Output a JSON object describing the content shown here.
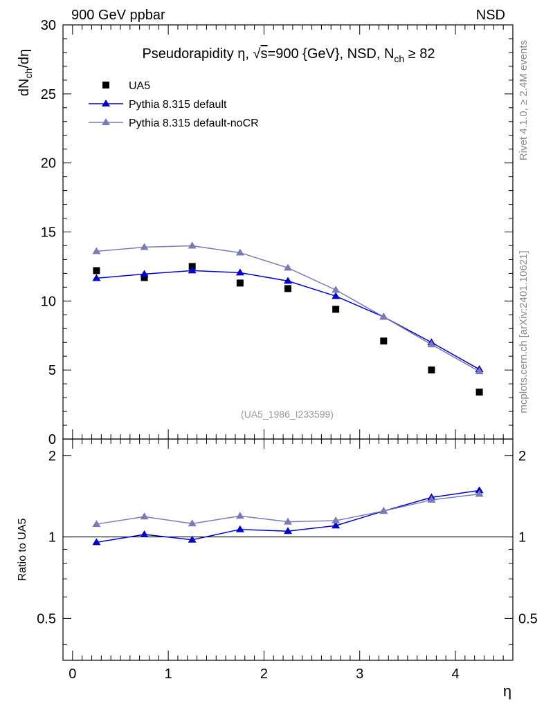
{
  "header": {
    "left": "900 GeV ppbar",
    "right": "NSD"
  },
  "side_labels": {
    "rivet": "Rivet 4.1.0, ≥ 2.4M events",
    "mcplots": "mcplots.cern.ch [arXiv:2401.10621]"
  },
  "chart_data": {
    "type": "line",
    "title": "Pseudorapidity η, √s=900 {GeV}, NSD, N_ch ≥ 82",
    "title_parts": {
      "main": "Pseudorapidity η, ",
      "sqrt": "√",
      "s": "s",
      "rest": "=900 {GeV}, NSD, N",
      "sub": "ch",
      "tail": " ≥ 82"
    },
    "xlabel": "η",
    "ylabel": "dN_ch/dη",
    "ylabel_parts": {
      "a": "dN",
      "sub": "ch",
      "b": "/dη"
    },
    "ratio_ylabel": "Ratio to UA5",
    "analysis_tag": "(UA5_1986_I233599)",
    "xlim": [
      -0.1,
      4.6
    ],
    "ylim": [
      0,
      30
    ],
    "ratio_ylim": [
      0.35,
      2.3
    ],
    "x_ticks": [
      0,
      1,
      2,
      3,
      4
    ],
    "y_ticks": [
      0,
      5,
      10,
      15,
      20,
      25,
      30
    ],
    "ratio_ticks": [
      0.5,
      1,
      2
    ],
    "x": [
      0.25,
      0.75,
      1.25,
      1.75,
      2.25,
      2.75,
      3.25,
      3.75,
      4.25
    ],
    "series": [
      {
        "name": "UA5",
        "marker": "square",
        "color": "#000000",
        "values": [
          12.2,
          11.7,
          12.5,
          11.3,
          10.9,
          9.4,
          7.1,
          5.0,
          3.4
        ]
      },
      {
        "name": "Pythia 8.315 default",
        "marker": "triangle",
        "color": "#0000cc",
        "values": [
          11.65,
          11.95,
          12.2,
          12.05,
          11.45,
          10.35,
          8.85,
          7.0,
          5.05
        ]
      },
      {
        "name": "Pythia 8.315 default-noCR",
        "marker": "triangle",
        "color": "#7a7ab8",
        "values": [
          13.6,
          13.9,
          14.0,
          13.5,
          12.4,
          10.8,
          8.85,
          6.85,
          4.9
        ]
      }
    ],
    "ratios": [
      {
        "name": "Pythia 8.315 default",
        "color": "#0000cc",
        "values": [
          0.955,
          1.021,
          0.976,
          1.066,
          1.05,
          1.101,
          1.246,
          1.4,
          1.485
        ]
      },
      {
        "name": "Pythia 8.315 default-noCR",
        "color": "#7a7ab8",
        "values": [
          1.115,
          1.188,
          1.12,
          1.195,
          1.138,
          1.149,
          1.246,
          1.37,
          1.441
        ]
      }
    ]
  }
}
